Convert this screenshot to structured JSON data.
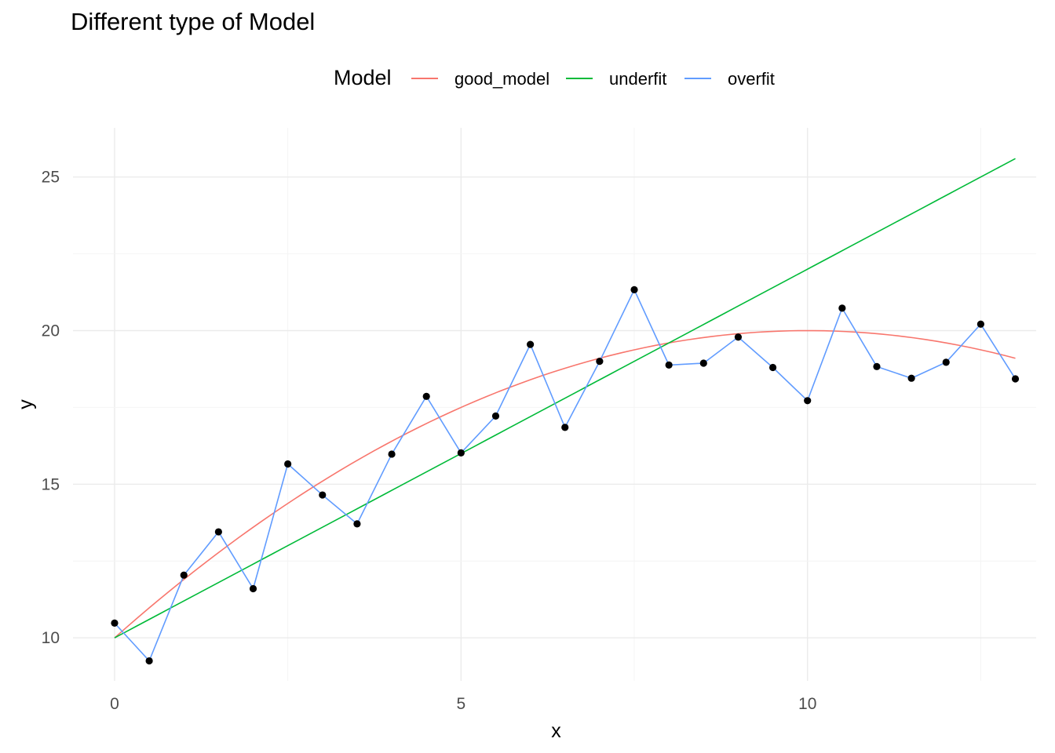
{
  "chart_data": {
    "type": "line",
    "title": "Different type of Model",
    "xlabel": "x",
    "ylabel": "y",
    "xlim": [
      -0.6,
      13.3
    ],
    "ylim": [
      8.6,
      26.6
    ],
    "xticks": [
      0,
      5,
      10
    ],
    "yticks": [
      10,
      15,
      20,
      25
    ],
    "grid": true,
    "legend": {
      "title": "Model",
      "position": "top"
    },
    "points": {
      "x": [
        0,
        0.5,
        1,
        1.5,
        2,
        2.5,
        3,
        3.5,
        4,
        4.5,
        5,
        5.5,
        6,
        6.5,
        7,
        7.5,
        8,
        8.5,
        9,
        9.5,
        10,
        10.5,
        11,
        11.5,
        12,
        12.5,
        13
      ],
      "y": [
        10.48,
        9.25,
        12.04,
        13.45,
        11.6,
        15.66,
        14.65,
        13.71,
        15.98,
        17.86,
        16.02,
        17.22,
        19.55,
        16.85,
        19.0,
        21.33,
        18.88,
        18.94,
        19.79,
        18.8,
        17.72,
        20.73,
        18.83,
        18.45,
        18.97,
        20.21,
        18.43
      ]
    },
    "series": [
      {
        "name": "good_model",
        "color": "#F8766D",
        "kind": "quadratic",
        "coef": [
          10.0,
          2.0,
          -0.1
        ],
        "x_range": [
          0,
          13
        ]
      },
      {
        "name": "underfit",
        "color": "#00BA38",
        "kind": "linear",
        "coef": [
          10.0,
          1.2
        ],
        "x_range": [
          0,
          13
        ]
      },
      {
        "name": "overfit",
        "color": "#619CFF",
        "kind": "interpolate_points"
      }
    ]
  }
}
